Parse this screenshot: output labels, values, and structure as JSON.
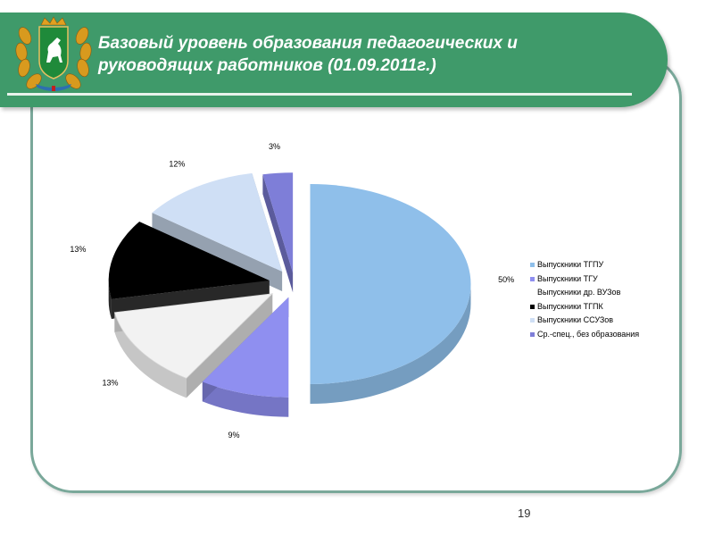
{
  "header": {
    "title": "Базовый уровень образования педагогических и руководящих работников (01.09.2011г.)",
    "emblem_icon": "tomsk-coat-of-arms-icon"
  },
  "colors": {
    "header_green": "#3f9a6a",
    "frame": "#7aa89a"
  },
  "chart_data": {
    "type": "pie",
    "style": "3d-exploded",
    "legend_position": "right",
    "slices": [
      {
        "label": "Выпускники ТГПУ",
        "value": 50,
        "data_label": "50%",
        "color": "#8fbfea"
      },
      {
        "label": "Выпускники ТГУ",
        "value": 9,
        "data_label": "9%",
        "color": "#8f8ff0"
      },
      {
        "label": "Выпускники др. ВУЗов",
        "value": 13,
        "data_label": "13%",
        "color": "#f2f2f2"
      },
      {
        "label": "Выпускники ТГПК",
        "value": 13,
        "data_label": "13%",
        "color": "#000000"
      },
      {
        "label": "Выпускники ССУЗов",
        "value": 12,
        "data_label": "12%",
        "color": "#cfdff5"
      },
      {
        "label": "Ср.-спец., без образования",
        "value": 3,
        "data_label": "3%",
        "color": "#7e7ed8"
      }
    ]
  },
  "legend": {
    "items": [
      {
        "label": "Выпускники ТГПУ",
        "color": "#8fbfea"
      },
      {
        "label": "Выпускники ТГУ",
        "color": "#8f8ff0"
      },
      {
        "label": "Выпускники др. ВУЗов",
        "color": "#ffffff"
      },
      {
        "label": "Выпускники ТГПК",
        "color": "#000000"
      },
      {
        "label": "Выпускники ССУЗов",
        "color": "#cfdff5"
      },
      {
        "label": "Ср.-спец., без образования",
        "color": "#7e7ed8"
      }
    ]
  },
  "footer": {
    "page_number": "19"
  }
}
